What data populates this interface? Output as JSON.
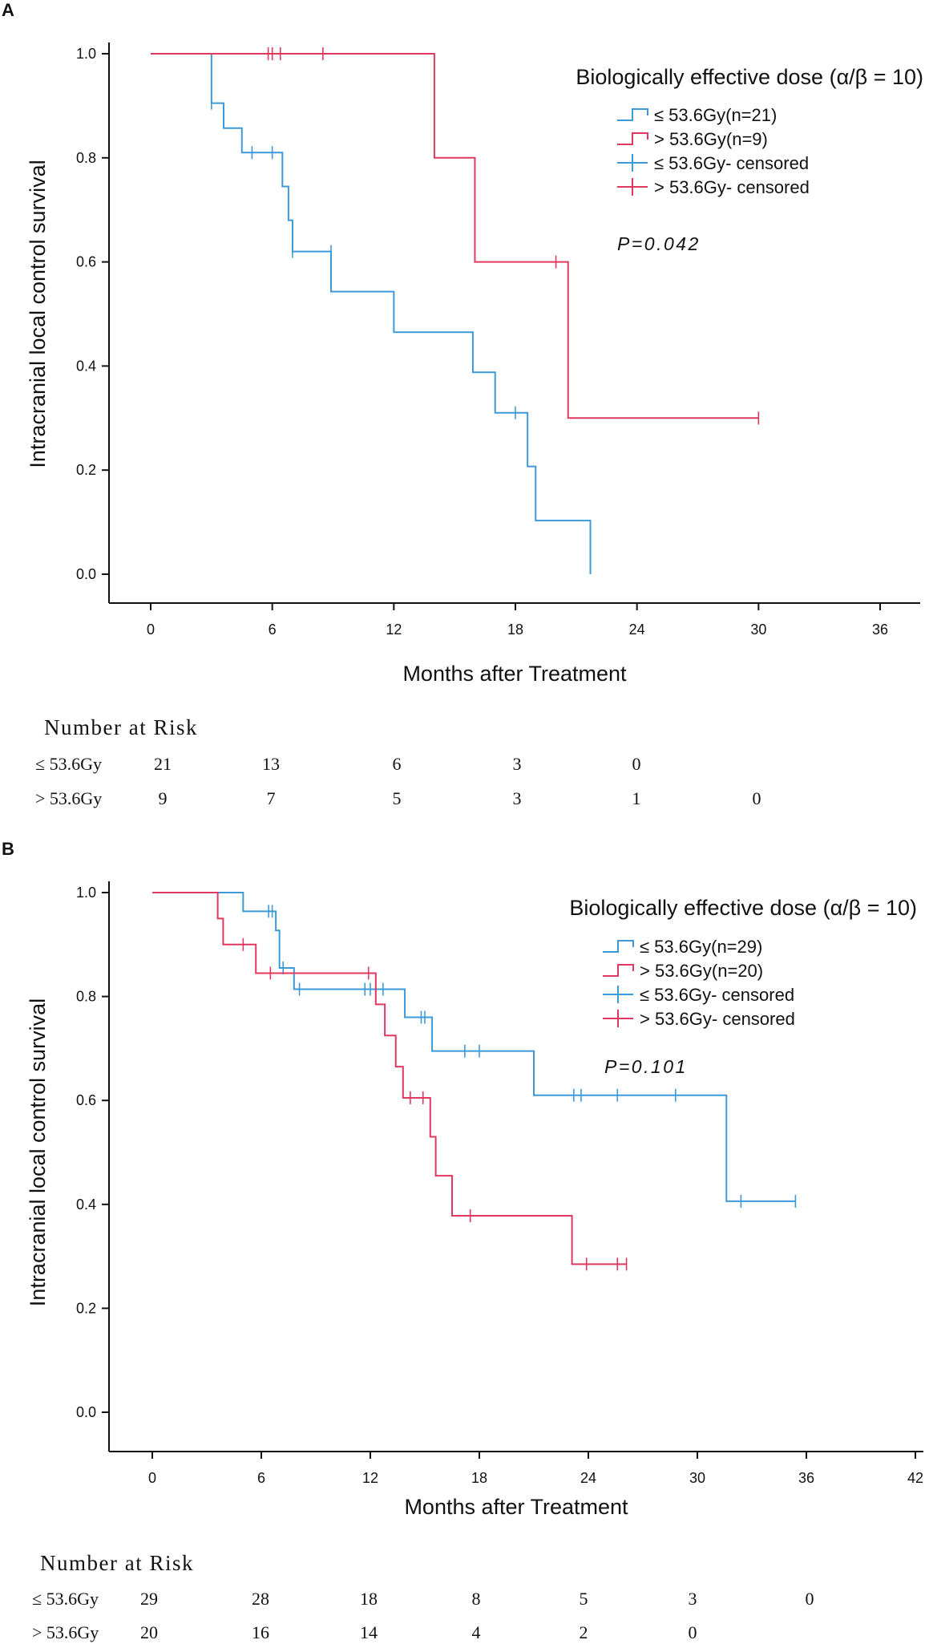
{
  "chart_data": [
    {
      "panel_label": "A",
      "type": "line",
      "subtype": "kaplan-meier step plot",
      "ylabel": "Intracranial local control survival",
      "xlabel": "Months after Treatment",
      "xlim": [
        0,
        36
      ],
      "ylim": [
        0,
        1
      ],
      "x_ticks": [
        0,
        6,
        12,
        18,
        24,
        30,
        36
      ],
      "x_tick_labels": [
        "0",
        "6",
        "12",
        "18",
        "24",
        "30",
        "36"
      ],
      "y_ticks": [
        0,
        0.2,
        0.4,
        0.6,
        0.8,
        1.0
      ],
      "y_tick_labels": [
        "0.0",
        "0.2",
        "0.4",
        "0.6",
        "0.8",
        "1.0"
      ],
      "legend_title": "Biologically effective dose (α/β = 10)",
      "legend_position": "top-right",
      "legend": [
        {
          "label": "≤ 53.6Gy(n=21)",
          "marker": "step",
          "color": "#3d9ad8"
        },
        {
          "label": "> 53.6Gy(n=9)",
          "marker": "step",
          "color": "#e0385e"
        },
        {
          "label": "≤ 53.6Gy- censored",
          "marker": "cross",
          "color": "#3d9ad8"
        },
        {
          "label": "> 53.6Gy- censored",
          "marker": "cross",
          "color": "#e0385e"
        }
      ],
      "annotation": "P=0.042",
      "series": [
        {
          "name": "≤ 53.6Gy",
          "color": "#3d9ad8",
          "steps": [
            [
              0,
              1.0
            ],
            [
              3.0,
              0.905
            ],
            [
              3.6,
              0.857
            ],
            [
              4.5,
              0.81
            ],
            [
              6.5,
              0.745
            ],
            [
              6.8,
              0.68
            ],
            [
              7.0,
              0.62
            ],
            [
              8.9,
              0.543
            ],
            [
              12.0,
              0.465
            ],
            [
              15.9,
              0.388
            ],
            [
              17.0,
              0.31
            ],
            [
              18.6,
              0.207
            ],
            [
              19.0,
              0.103
            ],
            [
              21.7,
              0.0
            ]
          ],
          "end_x": 21.7,
          "censored": [
            [
              3.0,
              0.905
            ],
            [
              5.0,
              0.81
            ],
            [
              6.0,
              0.81
            ],
            [
              7.0,
              0.62
            ],
            [
              8.9,
              0.62
            ],
            [
              18.0,
              0.31
            ]
          ]
        },
        {
          "name": "> 53.6Gy",
          "color": "#e0385e",
          "steps": [
            [
              0,
              1.0
            ],
            [
              14.0,
              0.8
            ],
            [
              16.0,
              0.6
            ],
            [
              20.6,
              0.3
            ]
          ],
          "end_x": 30.0,
          "censored": [
            [
              5.8,
              1.0
            ],
            [
              6.0,
              1.0
            ],
            [
              6.4,
              1.0
            ],
            [
              8.5,
              1.0
            ],
            [
              20.0,
              0.6
            ],
            [
              30.0,
              0.3
            ]
          ]
        }
      ],
      "risk_table": {
        "title": "Number at Risk",
        "rows": [
          {
            "label": "≤ 53.6Gy",
            "values": [
              "21",
              "13",
              "6",
              "3",
              "0"
            ]
          },
          {
            "label": "> 53.6Gy",
            "values": [
              "9",
              "7",
              "5",
              "3",
              "1",
              "0"
            ]
          }
        ]
      }
    },
    {
      "panel_label": "B",
      "type": "line",
      "subtype": "kaplan-meier step plot",
      "ylabel": "Intracranial local control survival",
      "xlabel": "Months after Treatment",
      "xlim": [
        0,
        42
      ],
      "ylim": [
        0,
        1
      ],
      "x_ticks": [
        0,
        6,
        12,
        18,
        24,
        30,
        36,
        42
      ],
      "x_tick_labels": [
        "0",
        "6",
        "12",
        "18",
        "24",
        "30",
        "36",
        "42"
      ],
      "y_ticks": [
        0,
        0.2,
        0.4,
        0.6,
        0.8,
        1.0
      ],
      "y_tick_labels": [
        "0.0",
        "0.2",
        "0.4",
        "0.6",
        "0.8",
        "1.0"
      ],
      "legend_title": "Biologically effective dose (α/β = 10)",
      "legend_position": "top-right",
      "legend": [
        {
          "label": "≤ 53.6Gy(n=29)",
          "marker": "step",
          "color": "#3d9ad8"
        },
        {
          "label": "> 53.6Gy(n=20)",
          "marker": "step",
          "color": "#e0385e"
        },
        {
          "label": "≤ 53.6Gy- censored",
          "marker": "cross",
          "color": "#3d9ad8"
        },
        {
          "label": "> 53.6Gy- censored",
          "marker": "cross",
          "color": "#e0385e"
        }
      ],
      "annotation": "P=0.101",
      "series": [
        {
          "name": "≤ 53.6Gy",
          "color": "#3d9ad8",
          "steps": [
            [
              0,
              1.0
            ],
            [
              5.0,
              0.964
            ],
            [
              6.8,
              0.927
            ],
            [
              7.0,
              0.855
            ],
            [
              7.8,
              0.814
            ],
            [
              13.9,
              0.76
            ],
            [
              15.4,
              0.695
            ],
            [
              21.0,
              0.61
            ],
            [
              31.6,
              0.406
            ]
          ],
          "end_x": 35.4,
          "censored": [
            [
              6.4,
              0.964
            ],
            [
              6.6,
              0.964
            ],
            [
              7.2,
              0.855
            ],
            [
              8.1,
              0.814
            ],
            [
              11.7,
              0.814
            ],
            [
              12.0,
              0.814
            ],
            [
              12.7,
              0.814
            ],
            [
              14.8,
              0.76
            ],
            [
              15.0,
              0.76
            ],
            [
              17.2,
              0.695
            ],
            [
              18.0,
              0.695
            ],
            [
              23.2,
              0.61
            ],
            [
              23.6,
              0.61
            ],
            [
              25.6,
              0.61
            ],
            [
              28.8,
              0.61
            ],
            [
              32.4,
              0.406
            ],
            [
              35.4,
              0.406
            ]
          ]
        },
        {
          "name": "> 53.6Gy",
          "color": "#e0385e",
          "steps": [
            [
              0,
              1.0
            ],
            [
              3.6,
              0.95
            ],
            [
              3.9,
              0.9
            ],
            [
              5.7,
              0.845
            ],
            [
              12.3,
              0.785
            ],
            [
              12.8,
              0.725
            ],
            [
              13.4,
              0.665
            ],
            [
              13.8,
              0.605
            ],
            [
              15.3,
              0.53
            ],
            [
              15.6,
              0.455
            ],
            [
              16.5,
              0.378
            ],
            [
              23.1,
              0.285
            ]
          ],
          "end_x": 26.1,
          "censored": [
            [
              5.0,
              0.9
            ],
            [
              6.5,
              0.845
            ],
            [
              11.9,
              0.845
            ],
            [
              14.2,
              0.605
            ],
            [
              14.9,
              0.605
            ],
            [
              17.5,
              0.378
            ],
            [
              23.9,
              0.285
            ],
            [
              25.6,
              0.285
            ],
            [
              26.1,
              0.285
            ]
          ]
        }
      ],
      "risk_table": {
        "title": "Number at Risk",
        "rows": [
          {
            "label": "≤ 53.6Gy",
            "values": [
              "29",
              "28",
              "18",
              "8",
              "5",
              "3",
              "0"
            ]
          },
          {
            "label": "> 53.6Gy",
            "values": [
              "20",
              "16",
              "14",
              "4",
              "2",
              "0"
            ]
          }
        ]
      }
    }
  ]
}
